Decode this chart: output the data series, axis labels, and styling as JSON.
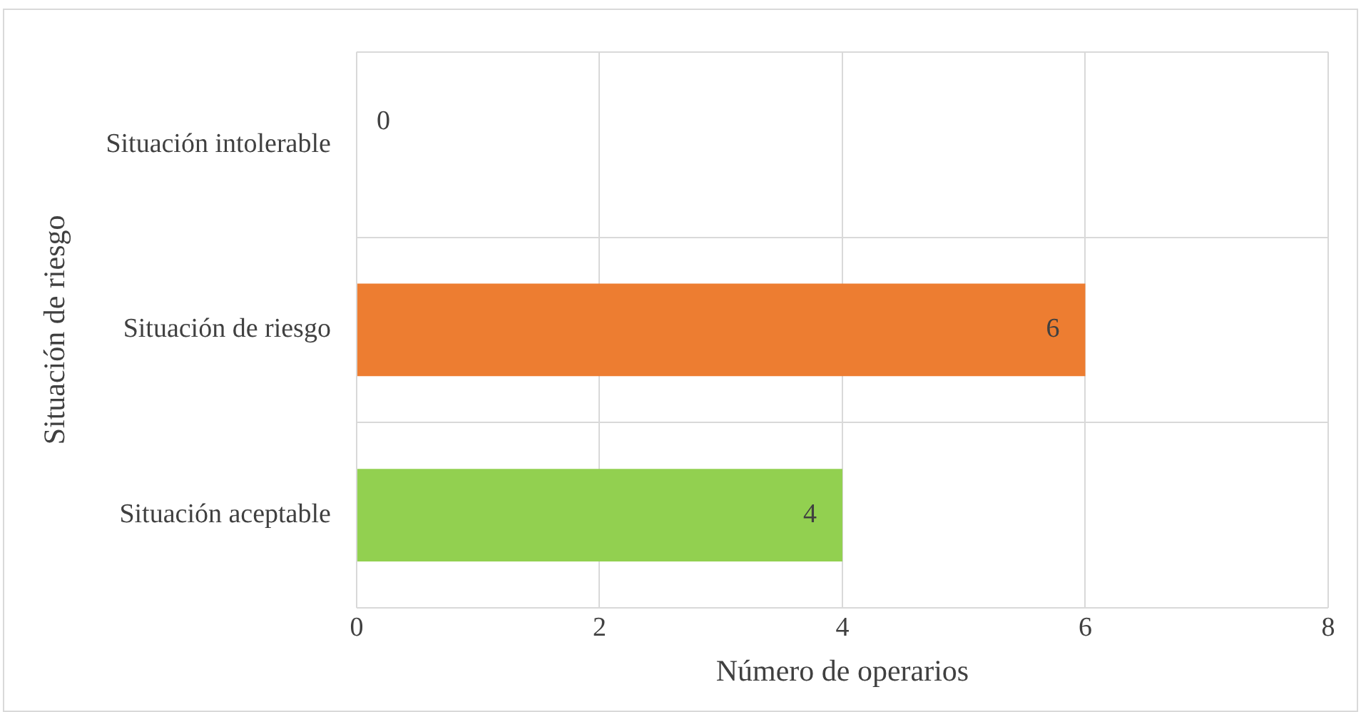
{
  "chart_data": {
    "type": "bar",
    "orientation": "horizontal",
    "xlabel": "Número de operarios",
    "ylabel": "Situación de riesgo",
    "categories": [
      "Situación intolerable",
      "Situación de riesgo",
      "Situación aceptable"
    ],
    "values": [
      0,
      6,
      4
    ],
    "colors": [
      null,
      "#ed7d31",
      "#92d050"
    ],
    "xlim": [
      0,
      8
    ],
    "xticks": [
      0,
      2,
      4,
      6,
      8
    ],
    "grid": true,
    "data_labels": true,
    "legend": false
  }
}
